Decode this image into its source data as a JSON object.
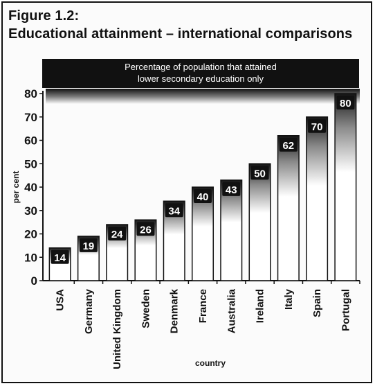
{
  "figure": {
    "label": "Figure 1.2:",
    "title": "Educational attainment – international comparisons"
  },
  "chart_data": {
    "type": "bar",
    "title": "Percentage of population that attained lower secondary education only",
    "title_lines": [
      "Percentage of population that attained",
      "lower secondary education only"
    ],
    "xlabel": "country",
    "ylabel": "per cent",
    "categories": [
      "USA",
      "Germany",
      "United Kingdom",
      "Sweden",
      "Denmark",
      "France",
      "Australia",
      "Ireland",
      "Italy",
      "Spain",
      "Portugal"
    ],
    "values": [
      14,
      19,
      24,
      26,
      34,
      40,
      43,
      50,
      62,
      70,
      80
    ],
    "data_labels": [
      "14",
      "19",
      "24",
      "26",
      "34",
      "40",
      "43",
      "50",
      "62",
      "70",
      "80"
    ],
    "ylim": [
      0,
      80
    ],
    "yticks": [
      0,
      10,
      20,
      30,
      40,
      50,
      60,
      70,
      80
    ],
    "ytick_labels": [
      "0",
      "10",
      "20",
      "30",
      "40",
      "50",
      "60",
      "70",
      "80"
    ],
    "grid": false,
    "colors": {
      "bar_top": "#1a1a1a",
      "bar_bottom": "#ffffff",
      "banner": "#111111",
      "label_box": "#111111",
      "label_text": "#ffffff"
    }
  }
}
